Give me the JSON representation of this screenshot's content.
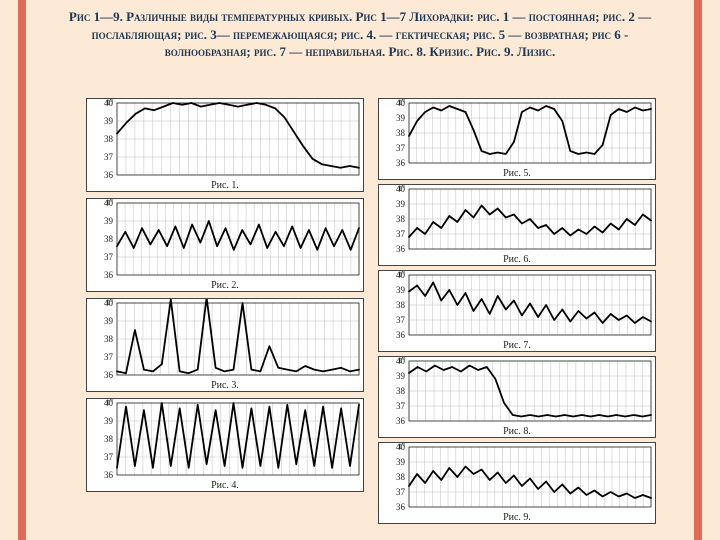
{
  "title": "Рис 1—9. Различные виды температурных кривых. Рис 1—7 Лихорадки: рис. 1 — постоянная; рис. 2 — послабляющая; рис. 3— перемежающаяся; рис. 4. — гектическая; рис. 5 — возвратная; рис 6 - волнообразная; рис. 7 — неправильная. Рис. 8. Кризис. Рис. 9. Лизис.",
  "style": {
    "bg": "#fce9d6",
    "accent": "#de6c57",
    "panel_bg": "#ffffff",
    "grid_color": "#bfbfbf",
    "axis_color": "#222222",
    "line_color": "#000000",
    "line_width": 1.8,
    "title_color": "#1e3550",
    "title_fontsize": 13,
    "label_fontsize": 9,
    "caption_fontsize": 10
  },
  "charts": [
    {
      "id": "p1",
      "caption": "Рис. 1.",
      "ymin": 36,
      "ymax": 40,
      "ylabel": "t°",
      "data": [
        38.3,
        38.9,
        39.4,
        39.7,
        39.6,
        39.8,
        40.0,
        39.9,
        40.0,
        39.8,
        39.9,
        40.0,
        39.9,
        39.8,
        39.9,
        40.0,
        39.9,
        39.7,
        39.2,
        38.4,
        37.6,
        36.9,
        36.6,
        36.5,
        36.4,
        36.5,
        36.4
      ]
    },
    {
      "id": "p2",
      "caption": "Рис. 2.",
      "ymin": 36,
      "ymax": 40,
      "ylabel": "t°",
      "data": [
        37.6,
        38.4,
        37.5,
        38.6,
        37.7,
        38.5,
        37.6,
        38.7,
        37.5,
        38.8,
        37.8,
        39.0,
        37.6,
        38.6,
        37.4,
        38.5,
        37.7,
        38.8,
        37.5,
        38.4,
        37.6,
        38.7,
        37.5,
        38.5,
        37.4,
        38.6,
        37.6,
        38.5,
        37.4,
        38.6
      ]
    },
    {
      "id": "p3",
      "caption": "Рис. 3.",
      "ymin": 36,
      "ymax": 40,
      "ylabel": "t°",
      "data": [
        36.2,
        36.1,
        38.5,
        36.3,
        36.2,
        36.6,
        40.2,
        36.2,
        36.1,
        36.3,
        40.3,
        36.4,
        36.2,
        36.3,
        40.0,
        36.3,
        36.2,
        37.6,
        36.4,
        36.3,
        36.2,
        36.5,
        36.3,
        36.2,
        36.3,
        36.4,
        36.2,
        36.3
      ]
    },
    {
      "id": "p4",
      "caption": "Рис. 4.",
      "ymin": 36,
      "ymax": 40,
      "ylabel": "t°",
      "data": [
        36.4,
        39.8,
        36.5,
        39.6,
        36.4,
        40.0,
        36.5,
        39.7,
        36.4,
        39.9,
        36.6,
        39.6,
        36.5,
        40.0,
        36.4,
        39.7,
        36.5,
        39.8,
        36.4,
        39.9,
        36.6,
        39.6,
        36.5,
        39.8,
        36.4,
        39.7,
        36.5,
        39.9
      ]
    },
    {
      "id": "p5",
      "caption": "Рис. 5.",
      "ymin": 36,
      "ymax": 40,
      "ylabel": "t°",
      "data": [
        37.8,
        38.8,
        39.4,
        39.7,
        39.5,
        39.8,
        39.6,
        39.4,
        38.2,
        36.8,
        36.6,
        36.7,
        36.6,
        37.4,
        39.4,
        39.7,
        39.5,
        39.8,
        39.6,
        38.8,
        36.8,
        36.6,
        36.7,
        36.6,
        37.2,
        39.2,
        39.6,
        39.4,
        39.7,
        39.5,
        39.6
      ]
    },
    {
      "id": "p6",
      "caption": "Рис. 6.",
      "ymin": 36,
      "ymax": 40,
      "ylabel": "t°",
      "data": [
        36.8,
        37.4,
        37.0,
        37.8,
        37.4,
        38.2,
        37.8,
        38.6,
        38.1,
        38.9,
        38.3,
        38.7,
        38.1,
        38.3,
        37.7,
        38.0,
        37.4,
        37.6,
        37.0,
        37.4,
        36.9,
        37.3,
        37.0,
        37.5,
        37.1,
        37.7,
        37.3,
        38.0,
        37.6,
        38.3,
        37.9
      ]
    },
    {
      "id": "p7",
      "caption": "Рис. 7.",
      "ymin": 36,
      "ymax": 40,
      "ylabel": "t°",
      "data": [
        38.9,
        39.3,
        38.6,
        39.5,
        38.3,
        39.0,
        38.0,
        38.8,
        37.6,
        38.4,
        37.4,
        38.6,
        37.7,
        38.3,
        37.3,
        38.1,
        37.2,
        38.0,
        37.0,
        37.7,
        36.9,
        37.6,
        37.1,
        37.5,
        36.8,
        37.4,
        37.0,
        37.3,
        36.8,
        37.2,
        36.9
      ]
    },
    {
      "id": "p8",
      "caption": "Рис. 8.",
      "ymin": 36,
      "ymax": 40,
      "ylabel": "t°",
      "data": [
        39.2,
        39.6,
        39.3,
        39.7,
        39.4,
        39.6,
        39.3,
        39.7,
        39.4,
        39.6,
        38.8,
        37.2,
        36.4,
        36.3,
        36.4,
        36.3,
        36.4,
        36.3,
        36.4,
        36.3,
        36.4,
        36.3,
        36.4,
        36.3,
        36.4,
        36.3,
        36.4,
        36.3,
        36.4
      ]
    },
    {
      "id": "p9",
      "caption": "Рис. 9.",
      "ymin": 36,
      "ymax": 40,
      "ylabel": "t°",
      "data": [
        37.4,
        38.2,
        37.6,
        38.4,
        37.8,
        38.6,
        38.0,
        38.7,
        38.2,
        38.5,
        37.8,
        38.3,
        37.6,
        38.1,
        37.4,
        37.9,
        37.2,
        37.7,
        37.0,
        37.5,
        36.9,
        37.3,
        36.8,
        37.1,
        36.7,
        37.0,
        36.7,
        36.9,
        36.6,
        36.8,
        36.6
      ]
    }
  ]
}
